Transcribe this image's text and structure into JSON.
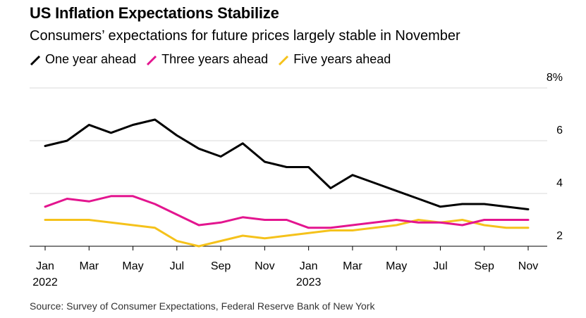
{
  "header": {
    "title": "US Inflation Expectations Stabilize",
    "subtitle": "Consumers’ expectations for future prices largely stable in November"
  },
  "footer": {
    "source": "Source: Survey of Consumer Expectations, Federal Reserve Bank of New York"
  },
  "chart_data": {
    "type": "line",
    "title": "US Inflation Expectations Stabilize",
    "subtitle": "Consumers’ expectations for future prices largely stable in November",
    "xlabel": "",
    "ylabel": "",
    "x": [
      "2022-01",
      "2022-02",
      "2022-03",
      "2022-04",
      "2022-05",
      "2022-06",
      "2022-07",
      "2022-08",
      "2022-09",
      "2022-10",
      "2022-11",
      "2022-12",
      "2023-01",
      "2023-02",
      "2023-03",
      "2023-04",
      "2023-05",
      "2023-06",
      "2023-07",
      "2023-08",
      "2023-09",
      "2023-10",
      "2023-11"
    ],
    "series": [
      {
        "name": "One year ahead",
        "color": "#000000",
        "values": [
          5.8,
          6.0,
          6.6,
          6.3,
          6.6,
          6.8,
          6.2,
          5.7,
          5.4,
          5.9,
          5.2,
          5.0,
          5.0,
          4.2,
          4.7,
          4.4,
          4.1,
          3.8,
          3.5,
          3.6,
          3.6,
          3.5,
          3.4
        ]
      },
      {
        "name": "Three years ahead",
        "color": "#e3158f",
        "values": [
          3.5,
          3.8,
          3.7,
          3.9,
          3.9,
          3.6,
          3.2,
          2.8,
          2.9,
          3.1,
          3.0,
          3.0,
          2.7,
          2.7,
          2.8,
          2.9,
          3.0,
          2.9,
          2.9,
          2.8,
          3.0,
          3.0,
          3.0
        ]
      },
      {
        "name": "Five years ahead",
        "color": "#f5c21b",
        "values": [
          3.0,
          3.0,
          3.0,
          2.9,
          2.8,
          2.7,
          2.2,
          2.0,
          2.2,
          2.4,
          2.3,
          2.4,
          2.5,
          2.6,
          2.6,
          2.7,
          2.8,
          3.0,
          2.9,
          3.0,
          2.8,
          2.7,
          2.7
        ]
      }
    ],
    "ylim": [
      2,
      8
    ],
    "yticks": [
      2,
      4,
      6,
      8
    ],
    "ytick_labels": [
      "2",
      "4",
      "6",
      "8%"
    ],
    "xtick_labels": [
      {
        "index": 0,
        "label": "Jan",
        "year": "2022"
      },
      {
        "index": 2,
        "label": "Mar",
        "year": ""
      },
      {
        "index": 4,
        "label": "May",
        "year": ""
      },
      {
        "index": 6,
        "label": "Jul",
        "year": ""
      },
      {
        "index": 8,
        "label": "Sep",
        "year": ""
      },
      {
        "index": 10,
        "label": "Nov",
        "year": ""
      },
      {
        "index": 12,
        "label": "Jan",
        "year": "2023"
      },
      {
        "index": 14,
        "label": "Mar",
        "year": ""
      },
      {
        "index": 16,
        "label": "May",
        "year": ""
      },
      {
        "index": 18,
        "label": "Jul",
        "year": ""
      },
      {
        "index": 20,
        "label": "Sep",
        "year": ""
      },
      {
        "index": 22,
        "label": "Nov",
        "year": ""
      }
    ],
    "grid": true,
    "legend_position": "top-left",
    "yaxis_position": "right"
  }
}
